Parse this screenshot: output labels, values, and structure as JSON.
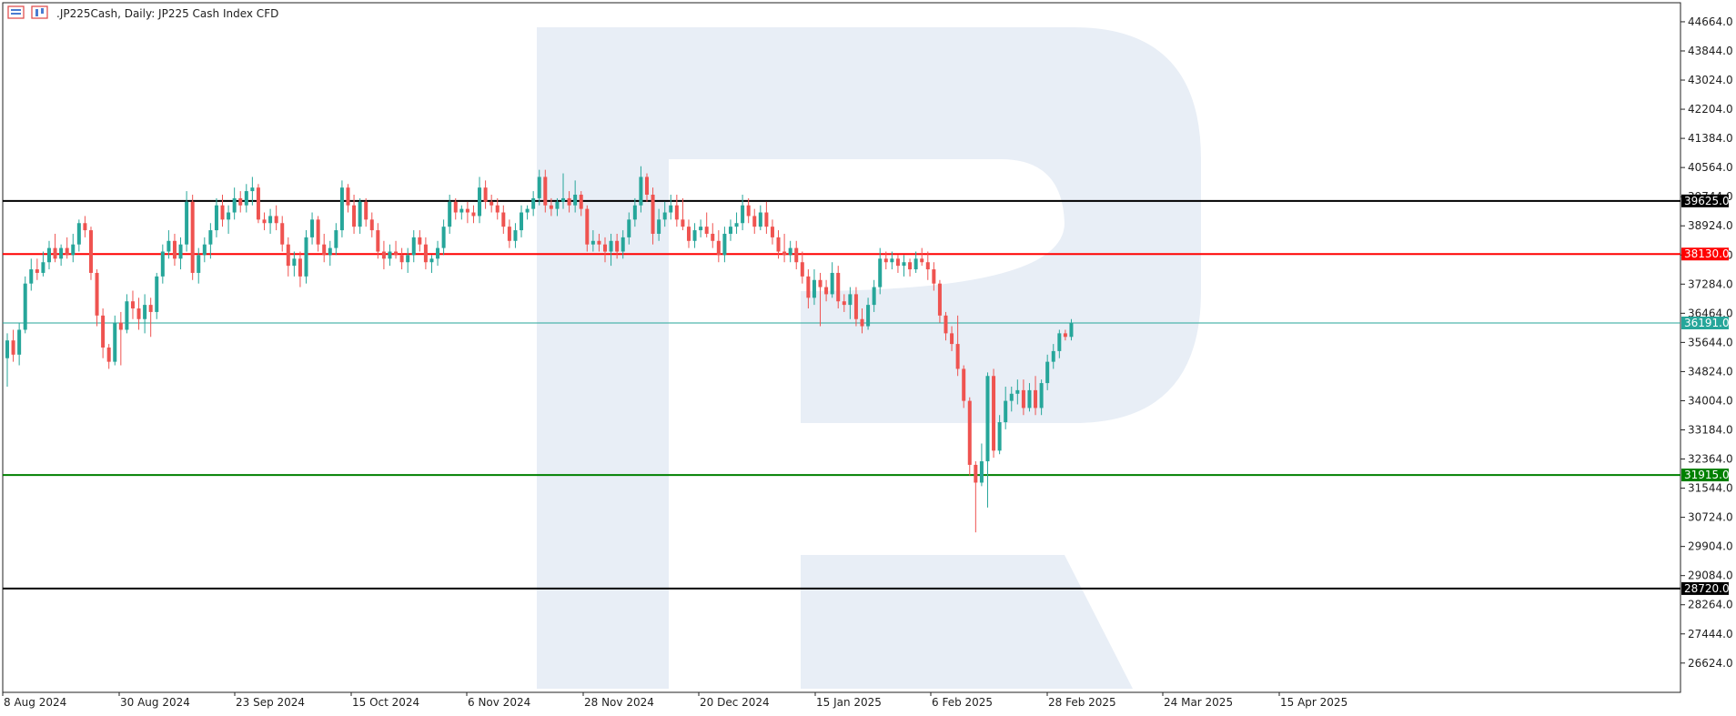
{
  "header": {
    "title": ".JP225Cash, Daily:  JP225 Cash Index CFD"
  },
  "chart_data": {
    "type": "candlestick",
    "symbol": ".JP225Cash",
    "timeframe": "Daily",
    "description": "JP225 Cash Index CFD",
    "ylim": [
      25800,
      45200
    ],
    "y_ticks": [
      26624.0,
      27444.0,
      28264.0,
      29084.0,
      29904.0,
      30724.0,
      31544.0,
      32364.0,
      33184.0,
      34004.0,
      34824.0,
      35644.0,
      36464.0,
      37284.0,
      38104.0,
      38924.0,
      39744.0,
      40564.0,
      41384.0,
      42204.0,
      43024.0,
      43844.0,
      44664.0
    ],
    "y_tick_labels": [
      "26624.0",
      "27444.0",
      "28264.0",
      "29084.0",
      "29904.0",
      "30724.0",
      "31544.0",
      "32364.0",
      "33184.0",
      "34004.0",
      "34824.0",
      "35644.0",
      "36464.0",
      "37284.0",
      "38104.0",
      "38924.0",
      "39744.0",
      "40564.0",
      "41384.0",
      "42204.0",
      "43024.0",
      "43844.0",
      "44664.0"
    ],
    "x_tick_labels": [
      "8 Aug 2024",
      "30 Aug 2024",
      "23 Sep 2024",
      "15 Oct 2024",
      "6 Nov 2024",
      "28 Nov 2024",
      "20 Dec 2024",
      "15 Jan 2025",
      "6 Feb 2025",
      "28 Feb 2025",
      "24 Mar 2025",
      "15 Apr 2025"
    ],
    "levels": [
      {
        "value": 39625.0,
        "label": "39625.0",
        "color": "#000000",
        "kind": "resistance"
      },
      {
        "value": 38130.0,
        "label": "38130.0",
        "color": "#ff0000",
        "kind": "resistance"
      },
      {
        "value": 36191.0,
        "label": "36191.0",
        "color": "#26a69a",
        "kind": "current-price"
      },
      {
        "value": 31915.0,
        "label": "31915.0",
        "color": "#008000",
        "kind": "support"
      },
      {
        "value": 28720.0,
        "label": "28720.0",
        "color": "#000000",
        "kind": "support"
      }
    ],
    "up_color": "#26a69a",
    "down_color": "#ef5350",
    "candles": [
      {
        "o": 35200,
        "h": 35900,
        "l": 34400,
        "c": 35700
      },
      {
        "o": 35700,
        "h": 36000,
        "l": 35100,
        "c": 35300
      },
      {
        "o": 35300,
        "h": 36200,
        "l": 35000,
        "c": 36000
      },
      {
        "o": 36000,
        "h": 37500,
        "l": 35900,
        "c": 37300
      },
      {
        "o": 37300,
        "h": 38000,
        "l": 37100,
        "c": 37700
      },
      {
        "o": 37700,
        "h": 38000,
        "l": 37400,
        "c": 37600
      },
      {
        "o": 37600,
        "h": 38200,
        "l": 37500,
        "c": 37900
      },
      {
        "o": 37900,
        "h": 38500,
        "l": 37700,
        "c": 38300
      },
      {
        "o": 38300,
        "h": 38700,
        "l": 37900,
        "c": 38000
      },
      {
        "o": 38000,
        "h": 38400,
        "l": 37800,
        "c": 38300
      },
      {
        "o": 38300,
        "h": 38600,
        "l": 38000,
        "c": 38100
      },
      {
        "o": 38100,
        "h": 38700,
        "l": 37900,
        "c": 38400
      },
      {
        "o": 38400,
        "h": 39100,
        "l": 38200,
        "c": 39000
      },
      {
        "o": 39000,
        "h": 39200,
        "l": 38600,
        "c": 38800
      },
      {
        "o": 38800,
        "h": 38900,
        "l": 37400,
        "c": 37600
      },
      {
        "o": 37600,
        "h": 37700,
        "l": 36100,
        "c": 36400
      },
      {
        "o": 36400,
        "h": 36600,
        "l": 35200,
        "c": 35500
      },
      {
        "o": 35500,
        "h": 35600,
        "l": 34900,
        "c": 35100
      },
      {
        "o": 35100,
        "h": 36400,
        "l": 35000,
        "c": 36200
      },
      {
        "o": 36200,
        "h": 36500,
        "l": 35000,
        "c": 36000
      },
      {
        "o": 36000,
        "h": 37000,
        "l": 35900,
        "c": 36800
      },
      {
        "o": 36800,
        "h": 37100,
        "l": 36300,
        "c": 36600
      },
      {
        "o": 36600,
        "h": 36900,
        "l": 36000,
        "c": 36300
      },
      {
        "o": 36300,
        "h": 37000,
        "l": 35900,
        "c": 36700
      },
      {
        "o": 36700,
        "h": 36900,
        "l": 35800,
        "c": 36500
      },
      {
        "o": 36500,
        "h": 37600,
        "l": 36300,
        "c": 37500
      },
      {
        "o": 37500,
        "h": 38400,
        "l": 37300,
        "c": 38200
      },
      {
        "o": 38200,
        "h": 38800,
        "l": 38000,
        "c": 38500
      },
      {
        "o": 38500,
        "h": 38700,
        "l": 37800,
        "c": 38000
      },
      {
        "o": 38000,
        "h": 38600,
        "l": 37700,
        "c": 38400
      },
      {
        "o": 38400,
        "h": 39900,
        "l": 38200,
        "c": 39600
      },
      {
        "o": 39600,
        "h": 39800,
        "l": 37400,
        "c": 37600
      },
      {
        "o": 37600,
        "h": 38300,
        "l": 37300,
        "c": 38100
      },
      {
        "o": 38100,
        "h": 38600,
        "l": 37900,
        "c": 38400
      },
      {
        "o": 38400,
        "h": 39000,
        "l": 38000,
        "c": 38800
      },
      {
        "o": 38800,
        "h": 39700,
        "l": 38600,
        "c": 39500
      },
      {
        "o": 39500,
        "h": 39800,
        "l": 38900,
        "c": 39100
      },
      {
        "o": 39100,
        "h": 39500,
        "l": 38700,
        "c": 39300
      },
      {
        "o": 39300,
        "h": 40000,
        "l": 39100,
        "c": 39700
      },
      {
        "o": 39700,
        "h": 39900,
        "l": 39300,
        "c": 39500
      },
      {
        "o": 39500,
        "h": 40100,
        "l": 39300,
        "c": 39900
      },
      {
        "o": 39900,
        "h": 40300,
        "l": 39500,
        "c": 40000
      },
      {
        "o": 40000,
        "h": 40100,
        "l": 39000,
        "c": 39100
      },
      {
        "o": 39100,
        "h": 39300,
        "l": 38800,
        "c": 39000
      },
      {
        "o": 39000,
        "h": 39400,
        "l": 38700,
        "c": 39200
      },
      {
        "o": 39200,
        "h": 39500,
        "l": 38800,
        "c": 39000
      },
      {
        "o": 39000,
        "h": 39200,
        "l": 38200,
        "c": 38400
      },
      {
        "o": 38400,
        "h": 38600,
        "l": 37500,
        "c": 37800
      },
      {
        "o": 37800,
        "h": 38200,
        "l": 37500,
        "c": 38000
      },
      {
        "o": 38000,
        "h": 38200,
        "l": 37200,
        "c": 37500
      },
      {
        "o": 37500,
        "h": 38800,
        "l": 37300,
        "c": 38600
      },
      {
        "o": 38600,
        "h": 39300,
        "l": 38400,
        "c": 39100
      },
      {
        "o": 39100,
        "h": 39200,
        "l": 38200,
        "c": 38400
      },
      {
        "o": 38400,
        "h": 38700,
        "l": 37900,
        "c": 38100
      },
      {
        "o": 38100,
        "h": 38500,
        "l": 37800,
        "c": 38300
      },
      {
        "o": 38300,
        "h": 39000,
        "l": 38100,
        "c": 38800
      },
      {
        "o": 38800,
        "h": 40200,
        "l": 38600,
        "c": 40000
      },
      {
        "o": 40000,
        "h": 40100,
        "l": 39300,
        "c": 39500
      },
      {
        "o": 39500,
        "h": 39800,
        "l": 38700,
        "c": 38900
      },
      {
        "o": 38900,
        "h": 39700,
        "l": 38700,
        "c": 39600
      },
      {
        "o": 39600,
        "h": 39700,
        "l": 38900,
        "c": 39100
      },
      {
        "o": 39100,
        "h": 39300,
        "l": 38600,
        "c": 38800
      },
      {
        "o": 38800,
        "h": 39000,
        "l": 38000,
        "c": 38200
      },
      {
        "o": 38200,
        "h": 38500,
        "l": 37700,
        "c": 38000
      },
      {
        "o": 38000,
        "h": 38400,
        "l": 37800,
        "c": 38200
      },
      {
        "o": 38200,
        "h": 38500,
        "l": 38000,
        "c": 38100
      },
      {
        "o": 38100,
        "h": 38300,
        "l": 37700,
        "c": 37900
      },
      {
        "o": 37900,
        "h": 38300,
        "l": 37600,
        "c": 38100
      },
      {
        "o": 38100,
        "h": 38800,
        "l": 37900,
        "c": 38600
      },
      {
        "o": 38600,
        "h": 38800,
        "l": 38200,
        "c": 38400
      },
      {
        "o": 38400,
        "h": 38600,
        "l": 37700,
        "c": 37900
      },
      {
        "o": 37900,
        "h": 38100,
        "l": 37600,
        "c": 38000
      },
      {
        "o": 38000,
        "h": 38500,
        "l": 37800,
        "c": 38300
      },
      {
        "o": 38300,
        "h": 39100,
        "l": 38100,
        "c": 38900
      },
      {
        "o": 38900,
        "h": 39800,
        "l": 38700,
        "c": 39600
      },
      {
        "o": 39600,
        "h": 39700,
        "l": 39100,
        "c": 39300
      },
      {
        "o": 39300,
        "h": 39500,
        "l": 39100,
        "c": 39400
      },
      {
        "o": 39400,
        "h": 39600,
        "l": 39000,
        "c": 39300
      },
      {
        "o": 39300,
        "h": 39500,
        "l": 39000,
        "c": 39200
      },
      {
        "o": 39200,
        "h": 40300,
        "l": 39000,
        "c": 40000
      },
      {
        "o": 40000,
        "h": 40200,
        "l": 39400,
        "c": 39600
      },
      {
        "o": 39600,
        "h": 39800,
        "l": 39300,
        "c": 39500
      },
      {
        "o": 39500,
        "h": 39700,
        "l": 39100,
        "c": 39300
      },
      {
        "o": 39300,
        "h": 39500,
        "l": 38700,
        "c": 38900
      },
      {
        "o": 38900,
        "h": 39100,
        "l": 38300,
        "c": 38500
      },
      {
        "o": 38500,
        "h": 39000,
        "l": 38300,
        "c": 38800
      },
      {
        "o": 38800,
        "h": 39500,
        "l": 38600,
        "c": 39300
      },
      {
        "o": 39300,
        "h": 39500,
        "l": 39100,
        "c": 39400
      },
      {
        "o": 39400,
        "h": 39900,
        "l": 39200,
        "c": 39700
      },
      {
        "o": 39700,
        "h": 40500,
        "l": 39500,
        "c": 40300
      },
      {
        "o": 40300,
        "h": 40500,
        "l": 39300,
        "c": 39500
      },
      {
        "o": 39500,
        "h": 39700,
        "l": 39200,
        "c": 39400
      },
      {
        "o": 39400,
        "h": 39700,
        "l": 39200,
        "c": 39600
      },
      {
        "o": 39600,
        "h": 40400,
        "l": 39400,
        "c": 39700
      },
      {
        "o": 39700,
        "h": 39900,
        "l": 39300,
        "c": 39500
      },
      {
        "o": 39500,
        "h": 40200,
        "l": 39300,
        "c": 39800
      },
      {
        "o": 39800,
        "h": 39900,
        "l": 39200,
        "c": 39400
      },
      {
        "o": 39400,
        "h": 39500,
        "l": 38200,
        "c": 38400
      },
      {
        "o": 38400,
        "h": 38800,
        "l": 38200,
        "c": 38500
      },
      {
        "o": 38500,
        "h": 38700,
        "l": 38200,
        "c": 38400
      },
      {
        "o": 38400,
        "h": 38600,
        "l": 37900,
        "c": 38200
      },
      {
        "o": 38200,
        "h": 38700,
        "l": 37800,
        "c": 38500
      },
      {
        "o": 38500,
        "h": 38700,
        "l": 38000,
        "c": 38200
      },
      {
        "o": 38200,
        "h": 38800,
        "l": 38000,
        "c": 38600
      },
      {
        "o": 38600,
        "h": 39300,
        "l": 38400,
        "c": 39100
      },
      {
        "o": 39100,
        "h": 39700,
        "l": 38900,
        "c": 39500
      },
      {
        "o": 39500,
        "h": 40600,
        "l": 39300,
        "c": 40300
      },
      {
        "o": 40300,
        "h": 40400,
        "l": 39600,
        "c": 39800
      },
      {
        "o": 39800,
        "h": 40000,
        "l": 38400,
        "c": 38700
      },
      {
        "o": 38700,
        "h": 39400,
        "l": 38500,
        "c": 39100
      },
      {
        "o": 39100,
        "h": 39600,
        "l": 38900,
        "c": 39300
      },
      {
        "o": 39300,
        "h": 39800,
        "l": 39100,
        "c": 39500
      },
      {
        "o": 39500,
        "h": 39800,
        "l": 38900,
        "c": 39100
      },
      {
        "o": 39100,
        "h": 39700,
        "l": 38800,
        "c": 38900
      },
      {
        "o": 38900,
        "h": 39100,
        "l": 38300,
        "c": 38500
      },
      {
        "o": 38500,
        "h": 39000,
        "l": 38300,
        "c": 38800
      },
      {
        "o": 38800,
        "h": 39100,
        "l": 38600,
        "c": 38900
      },
      {
        "o": 38900,
        "h": 39300,
        "l": 38600,
        "c": 38700
      },
      {
        "o": 38700,
        "h": 39000,
        "l": 38300,
        "c": 38500
      },
      {
        "o": 38500,
        "h": 38800,
        "l": 37900,
        "c": 38100
      },
      {
        "o": 38100,
        "h": 38900,
        "l": 37900,
        "c": 38700
      },
      {
        "o": 38700,
        "h": 39100,
        "l": 38500,
        "c": 38900
      },
      {
        "o": 38900,
        "h": 39300,
        "l": 38700,
        "c": 39000
      },
      {
        "o": 39000,
        "h": 39800,
        "l": 38800,
        "c": 39500
      },
      {
        "o": 39500,
        "h": 39700,
        "l": 39000,
        "c": 39200
      },
      {
        "o": 39200,
        "h": 39400,
        "l": 38700,
        "c": 38900
      },
      {
        "o": 38900,
        "h": 39500,
        "l": 38800,
        "c": 39300
      },
      {
        "o": 39300,
        "h": 39600,
        "l": 38700,
        "c": 38900
      },
      {
        "o": 38900,
        "h": 39100,
        "l": 38400,
        "c": 38600
      },
      {
        "o": 38600,
        "h": 38800,
        "l": 38000,
        "c": 38200
      },
      {
        "o": 38200,
        "h": 38700,
        "l": 37900,
        "c": 38100
      },
      {
        "o": 38100,
        "h": 38500,
        "l": 37900,
        "c": 38300
      },
      {
        "o": 38300,
        "h": 38500,
        "l": 37700,
        "c": 37900
      },
      {
        "o": 37900,
        "h": 38200,
        "l": 37300,
        "c": 37500
      },
      {
        "o": 37500,
        "h": 37700,
        "l": 36600,
        "c": 36900
      },
      {
        "o": 36900,
        "h": 37700,
        "l": 36700,
        "c": 37400
      },
      {
        "o": 37400,
        "h": 37600,
        "l": 36100,
        "c": 37200
      },
      {
        "o": 37200,
        "h": 37400,
        "l": 36800,
        "c": 37000
      },
      {
        "o": 37000,
        "h": 37900,
        "l": 36900,
        "c": 37600
      },
      {
        "o": 37600,
        "h": 37800,
        "l": 36600,
        "c": 36800
      },
      {
        "o": 36800,
        "h": 37000,
        "l": 36500,
        "c": 36700
      },
      {
        "o": 36700,
        "h": 37200,
        "l": 36300,
        "c": 37000
      },
      {
        "o": 37000,
        "h": 37200,
        "l": 36100,
        "c": 36300
      },
      {
        "o": 36300,
        "h": 36600,
        "l": 35900,
        "c": 36100
      },
      {
        "o": 36100,
        "h": 36900,
        "l": 36000,
        "c": 36700
      },
      {
        "o": 36700,
        "h": 37400,
        "l": 36500,
        "c": 37200
      },
      {
        "o": 37200,
        "h": 38300,
        "l": 37000,
        "c": 38000
      },
      {
        "o": 38000,
        "h": 38200,
        "l": 37700,
        "c": 37900
      },
      {
        "o": 37900,
        "h": 38200,
        "l": 37700,
        "c": 38000
      },
      {
        "o": 38000,
        "h": 38100,
        "l": 37600,
        "c": 37800
      },
      {
        "o": 37800,
        "h": 38100,
        "l": 37500,
        "c": 37900
      },
      {
        "o": 37900,
        "h": 38000,
        "l": 37500,
        "c": 37700
      },
      {
        "o": 37700,
        "h": 38200,
        "l": 37600,
        "c": 38000
      },
      {
        "o": 38000,
        "h": 38300,
        "l": 37800,
        "c": 37900
      },
      {
        "o": 37900,
        "h": 38200,
        "l": 37400,
        "c": 37700
      },
      {
        "o": 37700,
        "h": 37900,
        "l": 37100,
        "c": 37300
      },
      {
        "o": 37300,
        "h": 37400,
        "l": 36200,
        "c": 36400
      },
      {
        "o": 36400,
        "h": 36500,
        "l": 35700,
        "c": 35900
      },
      {
        "o": 35900,
        "h": 36100,
        "l": 35400,
        "c": 35600
      },
      {
        "o": 35600,
        "h": 36400,
        "l": 34700,
        "c": 34900
      },
      {
        "o": 34900,
        "h": 35000,
        "l": 33800,
        "c": 34000
      },
      {
        "o": 34000,
        "h": 34100,
        "l": 31900,
        "c": 32200
      },
      {
        "o": 32200,
        "h": 32300,
        "l": 30300,
        "c": 31700
      },
      {
        "o": 31700,
        "h": 32800,
        "l": 31600,
        "c": 32300
      },
      {
        "o": 32300,
        "h": 34800,
        "l": 31000,
        "c": 34700
      },
      {
        "o": 34700,
        "h": 34900,
        "l": 32400,
        "c": 32600
      },
      {
        "o": 32600,
        "h": 33600,
        "l": 32500,
        "c": 33400
      },
      {
        "o": 33400,
        "h": 34400,
        "l": 33200,
        "c": 34000
      },
      {
        "o": 34000,
        "h": 34400,
        "l": 33700,
        "c": 34200
      },
      {
        "o": 34200,
        "h": 34600,
        "l": 33900,
        "c": 34300
      },
      {
        "o": 34300,
        "h": 34600,
        "l": 33600,
        "c": 33800
      },
      {
        "o": 33800,
        "h": 34500,
        "l": 33700,
        "c": 34300
      },
      {
        "o": 34300,
        "h": 34700,
        "l": 33600,
        "c": 33800
      },
      {
        "o": 33800,
        "h": 34600,
        "l": 33600,
        "c": 34500
      },
      {
        "o": 34500,
        "h": 35300,
        "l": 34300,
        "c": 35100
      },
      {
        "o": 35100,
        "h": 35600,
        "l": 34900,
        "c": 35400
      },
      {
        "o": 35400,
        "h": 36000,
        "l": 35200,
        "c": 35900
      },
      {
        "o": 35900,
        "h": 36000,
        "l": 35700,
        "c": 35800
      },
      {
        "o": 35800,
        "h": 36300,
        "l": 35700,
        "c": 36191
      }
    ]
  }
}
